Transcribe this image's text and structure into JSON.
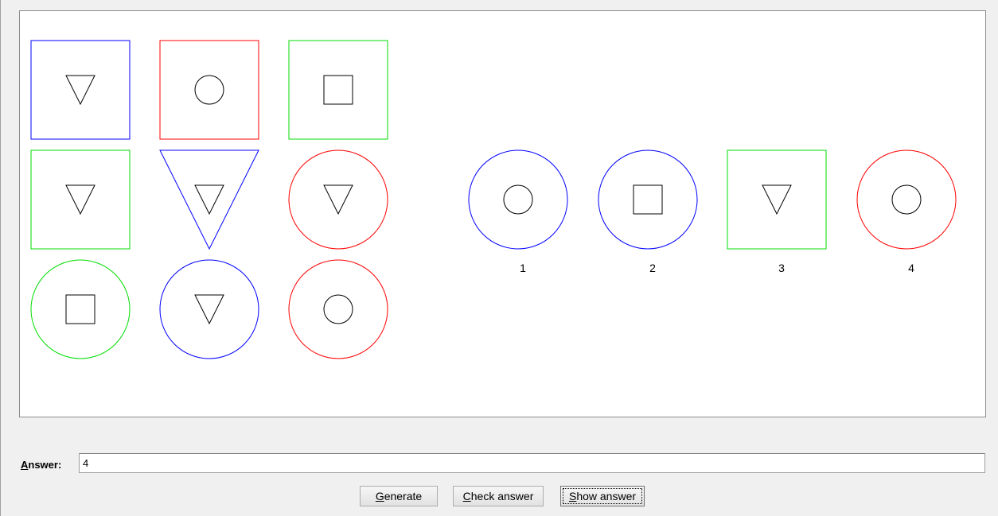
{
  "puzzle": {
    "grid": [
      [
        {
          "outer": "square",
          "outer_color": "#0000ff",
          "inner": "triangle"
        },
        {
          "outer": "square",
          "outer_color": "#ff0000",
          "inner": "circle"
        },
        {
          "outer": "square",
          "outer_color": "#00dd00",
          "inner": "square"
        }
      ],
      [
        {
          "outer": "square",
          "outer_color": "#00dd00",
          "inner": "triangle"
        },
        {
          "outer": "triangle",
          "outer_color": "#0000ff",
          "inner": "triangle"
        },
        {
          "outer": "circle",
          "outer_color": "#ff0000",
          "inner": "triangle"
        }
      ],
      [
        {
          "outer": "circle",
          "outer_color": "#00dd00",
          "inner": "square"
        },
        {
          "outer": "circle",
          "outer_color": "#0000ff",
          "inner": "triangle"
        },
        {
          "outer": "circle",
          "outer_color": "#ff0000",
          "inner": "circle"
        }
      ]
    ],
    "options": [
      {
        "label": "1",
        "outer": "circle",
        "outer_color": "#0000ff",
        "inner": "circle"
      },
      {
        "label": "2",
        "outer": "circle",
        "outer_color": "#0000ff",
        "inner": "square"
      },
      {
        "label": "3",
        "outer": "square",
        "outer_color": "#00dd00",
        "inner": "triangle"
      },
      {
        "label": "4",
        "outer": "circle",
        "outer_color": "#ff0000",
        "inner": "circle"
      }
    ]
  },
  "answer": {
    "label_mnemonic": "A",
    "label_rest": "nswer:",
    "value": "4"
  },
  "buttons": {
    "generate_mnemonic": "G",
    "generate_rest": "enerate",
    "check_mnemonic": "C",
    "check_rest": "heck answer",
    "show_mnemonic": "S",
    "show_rest": "how answer"
  }
}
